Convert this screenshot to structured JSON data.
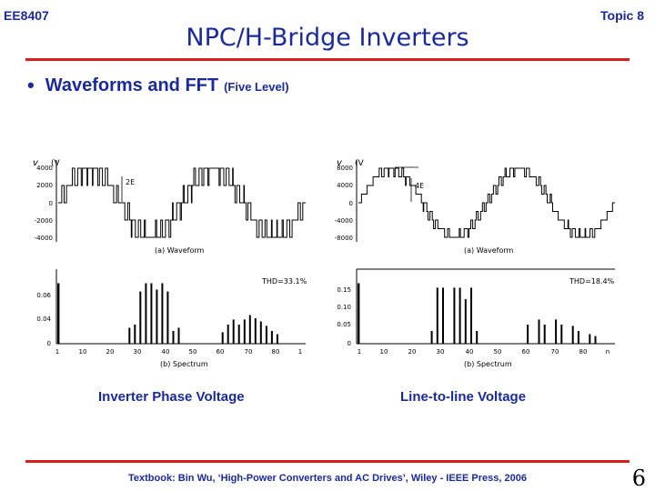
{
  "header": {
    "course": "EE8407",
    "topic": "Topic 8"
  },
  "title": "NPC/H-Bridge Inverters",
  "bullet": {
    "text": "Waveforms and FFT",
    "subtext": "(Five Level)"
  },
  "figures": [
    {
      "caption": "Inverter Phase Voltage",
      "waveform": {
        "ylabel": "v",
        "ylabel_unit": "(V",
        "yticks": [
          "4000",
          "2000",
          "0",
          "-2000",
          "-4000"
        ],
        "ylim": [
          -4000,
          4000
        ],
        "levels": [
          -2,
          -1,
          0,
          1,
          2
        ],
        "level_annotation": "2E",
        "caption": "(a) Waveform"
      },
      "spectrum": {
        "yticks": [
          "0.06",
          "0.04",
          "0"
        ],
        "xticks": [
          "1",
          "10",
          "20",
          "30",
          "40",
          "50",
          "60",
          "70",
          "80",
          "1"
        ],
        "thd_label": "THD=33.1%",
        "caption": "(b) Spectrum"
      }
    },
    {
      "caption": "Line-to-line Voltage",
      "waveform": {
        "ylabel": "v",
        "ylabel_unit": "(V",
        "yticks": [
          "8000",
          "4000",
          "0",
          "-4000",
          "-8000"
        ],
        "ylim": [
          -8000,
          8000
        ],
        "levels": [
          -4,
          -3,
          -2,
          -1,
          0,
          1,
          2,
          3,
          4
        ],
        "level_annotation": "4E",
        "caption": "(a) Waveform"
      },
      "spectrum": {
        "yticks": [
          "0.15",
          "0.10",
          "0.05",
          "0"
        ],
        "xticks": [
          "1",
          "10",
          "20",
          "30",
          "40",
          "50",
          "60",
          "70",
          "80",
          "n"
        ],
        "thd_label": "THD=18.4%",
        "caption": "(b) Spectrum"
      }
    }
  ],
  "footer": "Textbook: Bin Wu, ‘High-Power Converters and AC Drives’, Wiley - IEEE Press, 2006",
  "slide_number": "6",
  "colors": {
    "accent": "#1a2a9c",
    "rule": "#d62020"
  }
}
